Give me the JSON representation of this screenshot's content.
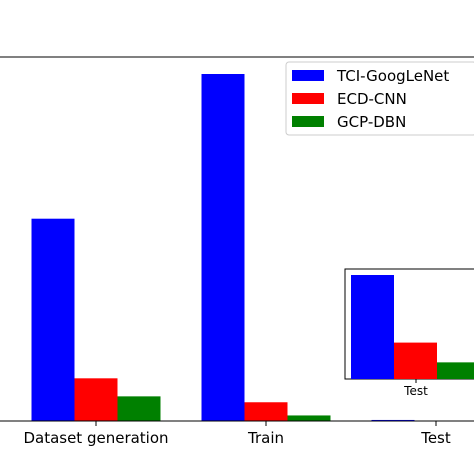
{
  "chart_data": {
    "type": "bar",
    "title": "",
    "xlabel": "",
    "ylabel": "",
    "categories": [
      "Dataset generation",
      "Train",
      "Test"
    ],
    "ylim": [
      0,
      100
    ],
    "grid": false,
    "legend_position": "top-right",
    "series": [
      {
        "name": "TCI-GoogLeNet",
        "color": "#0000ff",
        "values": [
          58.3,
          100,
          0.3
        ]
      },
      {
        "name": "ECD-CNN",
        "color": "#ff0000",
        "values": [
          12.3,
          5.4,
          0
        ]
      },
      {
        "name": "GCP-DBN",
        "color": "#008000",
        "values": [
          7.1,
          1.6,
          0
        ]
      }
    ],
    "inset": {
      "category": "Test",
      "values": [
        1.0,
        0.35,
        0.16
      ]
    }
  }
}
